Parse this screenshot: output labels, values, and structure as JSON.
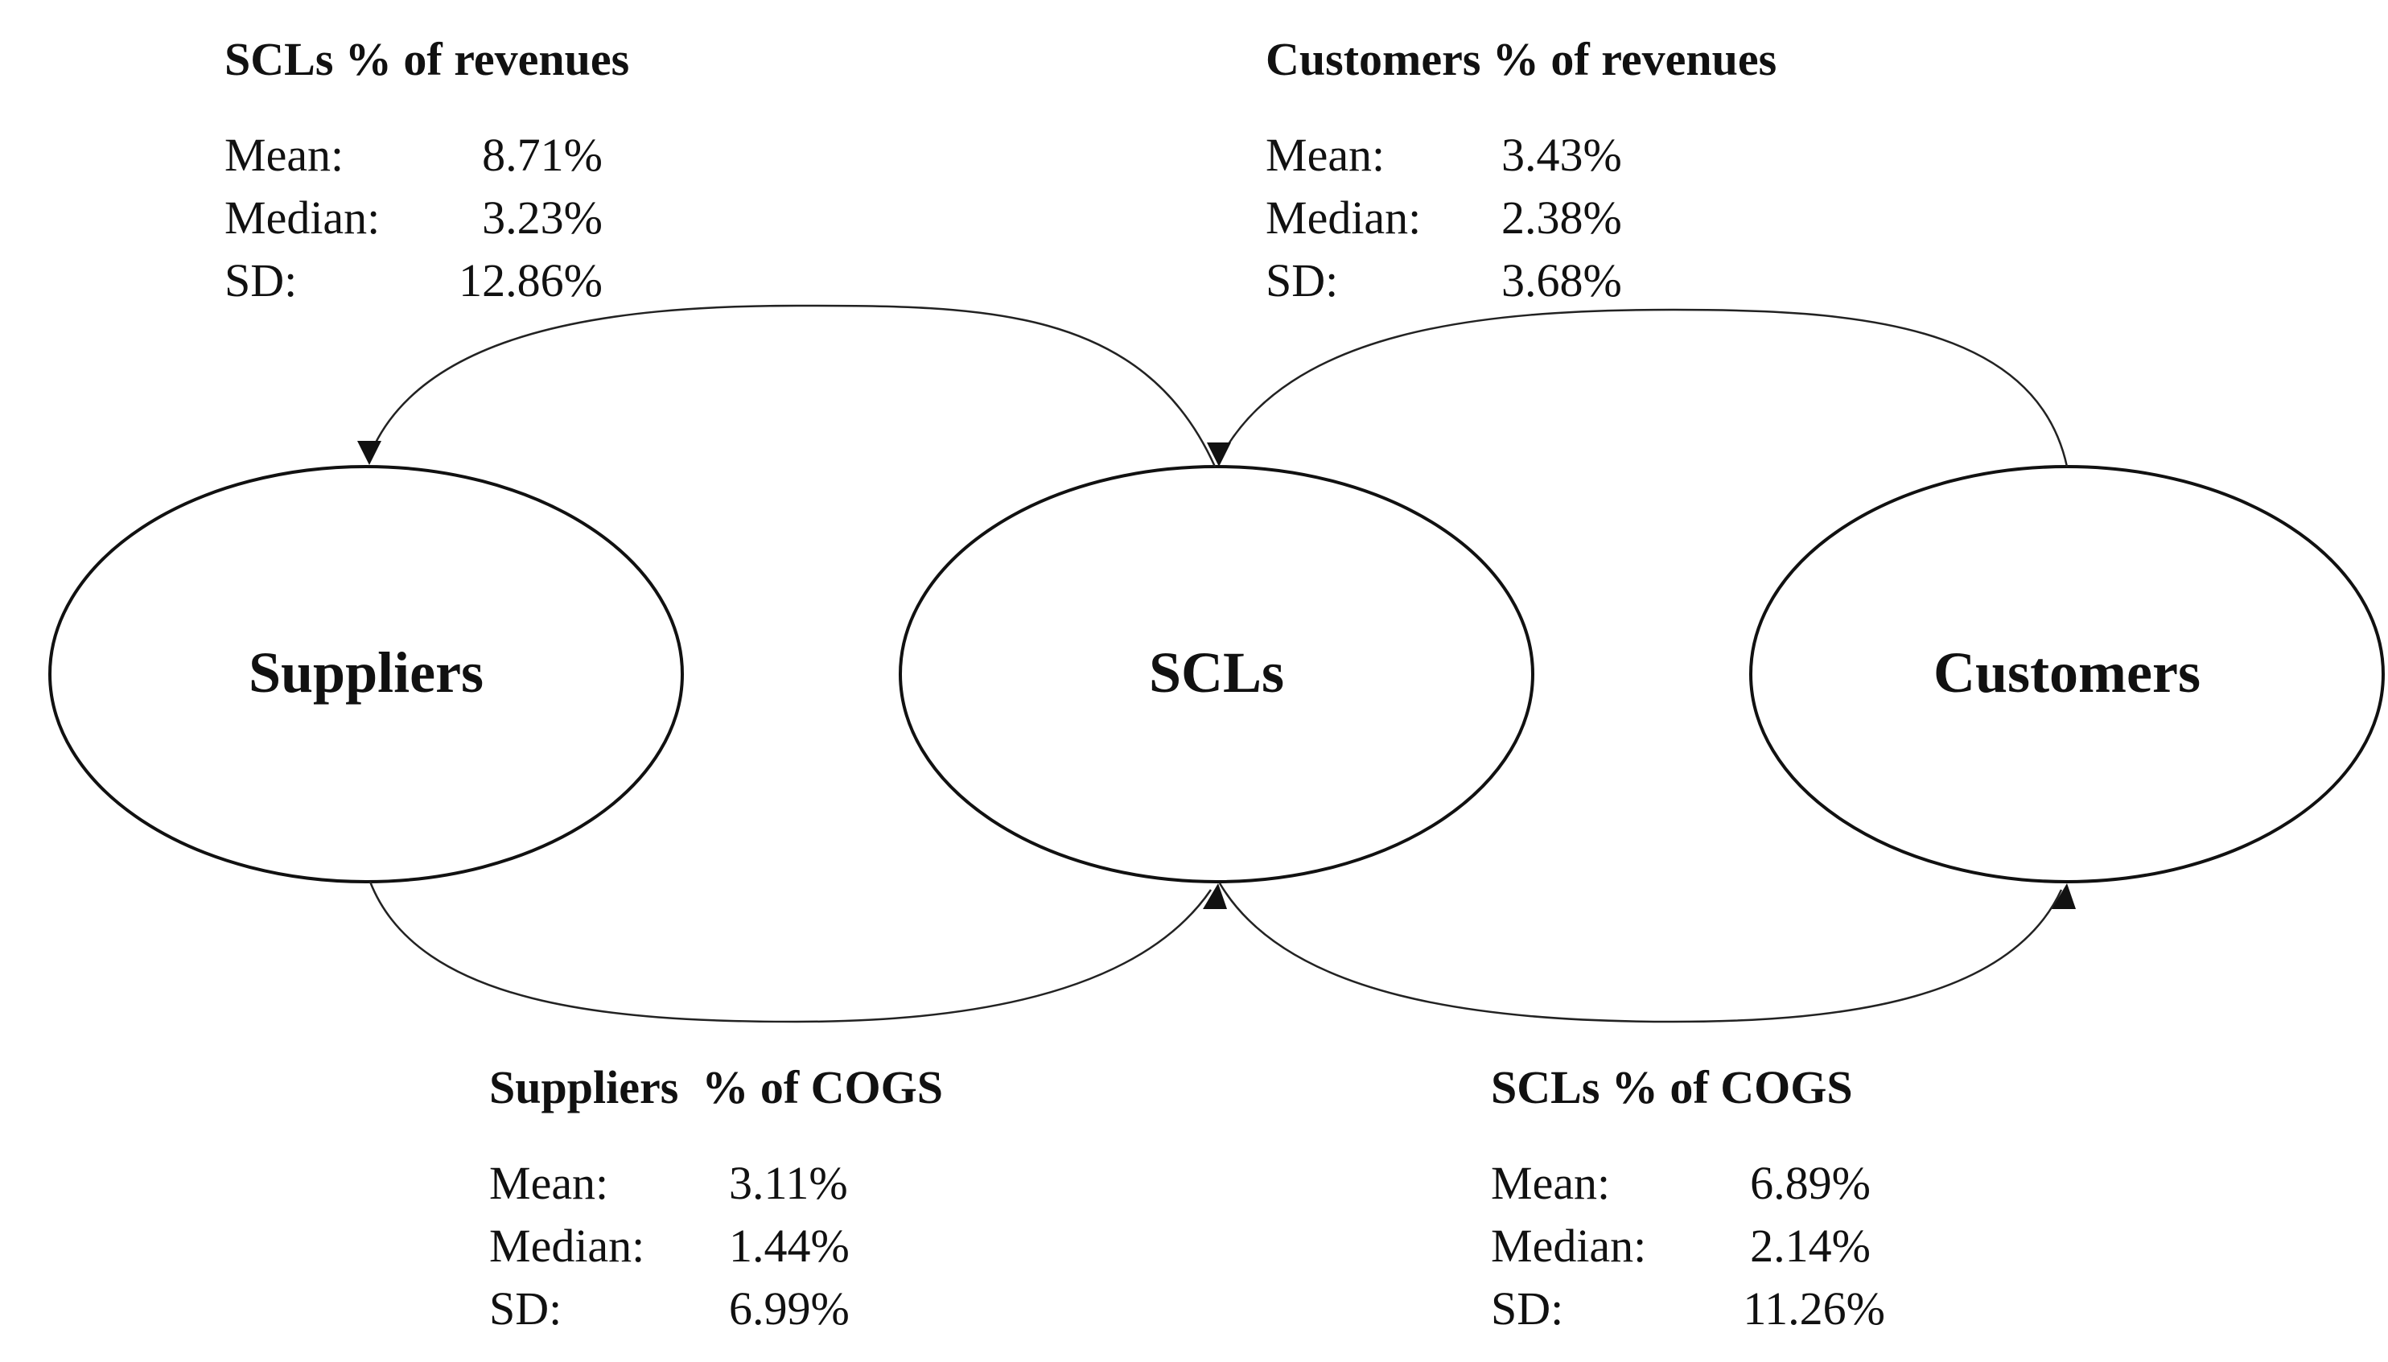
{
  "nodes": {
    "suppliers": "Suppliers",
    "scls": "SCLs",
    "customers": "Customers"
  },
  "stats": {
    "scls_revenues": {
      "title": "SCLs % of revenues",
      "rows": [
        {
          "label": "Mean:",
          "value": "8.71%"
        },
        {
          "label": "Median:",
          "value": "3.23%"
        },
        {
          "label": "SD:",
          "value": "12.86%"
        }
      ]
    },
    "customers_revenues": {
      "title": "Customers % of revenues",
      "rows": [
        {
          "label": "Mean:",
          "value": "3.43%"
        },
        {
          "label": "Median:",
          "value": "2.38%"
        },
        {
          "label": "SD:",
          "value": "3.68%"
        }
      ]
    },
    "suppliers_cogs": {
      "title": "Suppliers  % of COGS",
      "rows": [
        {
          "label": "Mean:",
          "value": "3.11%"
        },
        {
          "label": "Median:",
          "value": "1.44%"
        },
        {
          "label": "SD:",
          "value": "6.99%"
        }
      ]
    },
    "scls_cogs": {
      "title": "SCLs % of COGS",
      "rows": [
        {
          "label": "Mean:",
          "value": "6.89%"
        },
        {
          "label": "Median:",
          "value": "2.14%"
        },
        {
          "label": "SD:",
          "value": "11.26%"
        }
      ]
    }
  }
}
